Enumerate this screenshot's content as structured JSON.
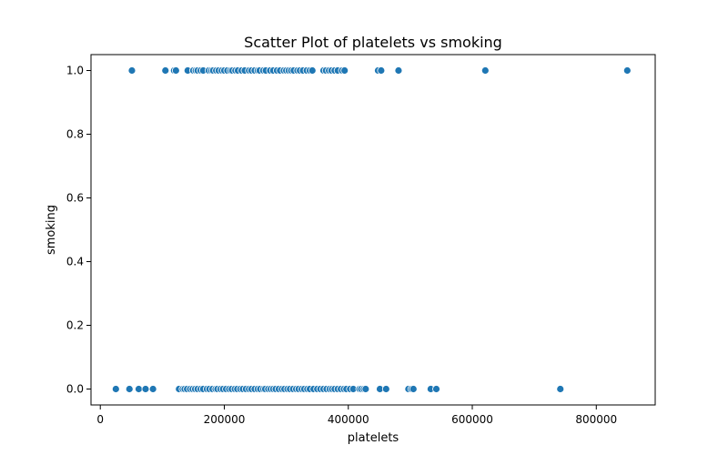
{
  "chart_data": {
    "type": "scatter",
    "title": "Scatter Plot of platelets vs smoking",
    "xlabel": "platelets",
    "ylabel": "smoking",
    "xlim": [
      -15000,
      895000
    ],
    "ylim": [
      -0.05,
      1.05
    ],
    "xticks": [
      0,
      200000,
      400000,
      600000,
      800000
    ],
    "xtick_labels": [
      "0",
      "200000",
      "400000",
      "600000",
      "800000"
    ],
    "yticks": [
      0.0,
      0.2,
      0.4,
      0.6,
      0.8,
      1.0
    ],
    "ytick_labels": [
      "0.0",
      "0.2",
      "0.4",
      "0.6",
      "0.8",
      "1.0"
    ],
    "grid": false,
    "marker_color": "#1f77b4",
    "series": [
      {
        "points": [
          [
            25100,
            0
          ],
          [
            47000,
            0
          ],
          [
            62000,
            0
          ],
          [
            73000,
            0
          ],
          [
            85000,
            0
          ],
          [
            127000,
            0
          ],
          [
            133000,
            0
          ],
          [
            136000,
            0
          ],
          [
            140000,
            0
          ],
          [
            145000,
            0
          ],
          [
            149000,
            0
          ],
          [
            153000,
            0
          ],
          [
            157000,
            0
          ],
          [
            162000,
            0
          ],
          [
            166000,
            0
          ],
          [
            172000,
            0
          ],
          [
            176000,
            0
          ],
          [
            181000,
            0
          ],
          [
            186000,
            0
          ],
          [
            189000,
            0
          ],
          [
            194000,
            0
          ],
          [
            198000,
            0
          ],
          [
            203000,
            0
          ],
          [
            208000,
            0
          ],
          [
            212000,
            0
          ],
          [
            217000,
            0
          ],
          [
            221000,
            0
          ],
          [
            226000,
            0
          ],
          [
            230000,
            0
          ],
          [
            235000,
            0
          ],
          [
            240000,
            0
          ],
          [
            244000,
            0
          ],
          [
            249000,
            0
          ],
          [
            254000,
            0
          ],
          [
            258000,
            0
          ],
          [
            263000,
            0
          ],
          [
            266000,
            0
          ],
          [
            271000,
            0
          ],
          [
            275000,
            0
          ],
          [
            279000,
            0
          ],
          [
            283000,
            0
          ],
          [
            288000,
            0
          ],
          [
            293000,
            0
          ],
          [
            297000,
            0
          ],
          [
            302000,
            0
          ],
          [
            306000,
            0
          ],
          [
            311000,
            0
          ],
          [
            316000,
            0
          ],
          [
            320000,
            0
          ],
          [
            325000,
            0
          ],
          [
            329000,
            0
          ],
          [
            334000,
            0
          ],
          [
            338000,
            0
          ],
          [
            344000,
            0
          ],
          [
            350000,
            0
          ],
          [
            355000,
            0
          ],
          [
            360000,
            0
          ],
          [
            365000,
            0
          ],
          [
            370000,
            0
          ],
          [
            374000,
            0
          ],
          [
            378000,
            0
          ],
          [
            383000,
            0
          ],
          [
            388000,
            0
          ],
          [
            393000,
            0
          ],
          [
            397000,
            0
          ],
          [
            403000,
            0
          ],
          [
            408000,
            0
          ],
          [
            418000,
            0
          ],
          [
            421000,
            0
          ],
          [
            425000,
            0
          ],
          [
            428000,
            0
          ],
          [
            451000,
            0
          ],
          [
            461000,
            0
          ],
          [
            497000,
            0
          ],
          [
            502000,
            0
          ],
          [
            505000,
            0
          ],
          [
            533000,
            0
          ],
          [
            542000,
            0
          ],
          [
            742000,
            0
          ],
          [
            51000,
            1
          ],
          [
            105000,
            1
          ],
          [
            119000,
            1
          ],
          [
            122000,
            1
          ],
          [
            141000,
            1
          ],
          [
            150000,
            1
          ],
          [
            154000,
            1
          ],
          [
            157000,
            1
          ],
          [
            162000,
            1
          ],
          [
            166000,
            1
          ],
          [
            175000,
            1
          ],
          [
            179000,
            1
          ],
          [
            182000,
            1
          ],
          [
            187000,
            1
          ],
          [
            191000,
            1
          ],
          [
            196000,
            1
          ],
          [
            200000,
            1
          ],
          [
            205000,
            1
          ],
          [
            210000,
            1
          ],
          [
            213000,
            1
          ],
          [
            218000,
            1
          ],
          [
            222000,
            1
          ],
          [
            228000,
            1
          ],
          [
            233000,
            1
          ],
          [
            240000,
            1
          ],
          [
            244000,
            1
          ],
          [
            249000,
            1
          ],
          [
            254000,
            1
          ],
          [
            257000,
            1
          ],
          [
            263000,
            1
          ],
          [
            267000,
            1
          ],
          [
            274000,
            1
          ],
          [
            279000,
            1
          ],
          [
            285000,
            1
          ],
          [
            290000,
            1
          ],
          [
            296000,
            1
          ],
          [
            300000,
            1
          ],
          [
            304000,
            1
          ],
          [
            308000,
            1
          ],
          [
            312000,
            1
          ],
          [
            318000,
            1
          ],
          [
            322000,
            1
          ],
          [
            327000,
            1
          ],
          [
            333000,
            1
          ],
          [
            338000,
            1
          ],
          [
            342000,
            1
          ],
          [
            360000,
            1
          ],
          [
            364000,
            1
          ],
          [
            369000,
            1
          ],
          [
            373000,
            1
          ],
          [
            378000,
            1
          ],
          [
            383000,
            1
          ],
          [
            390000,
            1
          ],
          [
            394000,
            1
          ],
          [
            448000,
            1
          ],
          [
            453000,
            1
          ],
          [
            481000,
            1
          ],
          [
            621000,
            1
          ],
          [
            850000,
            1
          ]
        ]
      }
    ]
  }
}
